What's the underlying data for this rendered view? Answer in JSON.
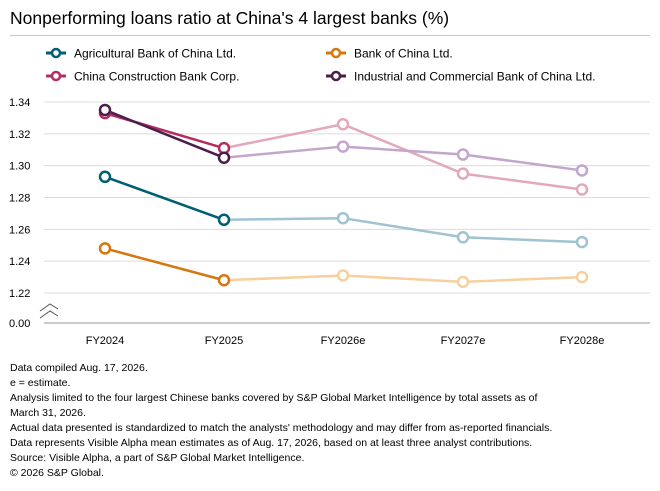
{
  "title": "Nonperforming loans ratio at China's 4 largest banks (%)",
  "notes": [
    "Data compiled Aug. 17, 2026.",
    "e = estimate.",
    "Analysis limited to the four largest Chinese banks covered by S&P Global Market Intelligence by total assets as of",
    "March 31, 2026.",
    " Actual data presented is standardized to match the analysts' methodology and may differ from as-reported financials.",
    "Data represents Visible Alpha mean estimates as of Aug. 17, 2026, based on at least three analyst contributions.",
    "Source: Visible Alpha, a part of S&P Global Market Intelligence.",
    "© 2026 S&P Global."
  ],
  "chart_data": {
    "type": "line",
    "title": "Nonperforming loans ratio at China's 4 largest banks (%)",
    "categories": [
      "FY2024",
      "FY2025",
      "FY2026e",
      "FY2027e",
      "FY2028e"
    ],
    "actual_categories": [
      "FY2024",
      "FY2025"
    ],
    "ylim": [
      1.22,
      1.34
    ],
    "y_ticks": [
      "1.34",
      "1.32",
      "1.30",
      "1.28",
      "1.26",
      "1.24",
      "1.22",
      "0.00"
    ],
    "axis_break": true,
    "grid": true,
    "legend_placement": "top",
    "series": [
      {
        "name": "Agricultural Bank of China Ltd.",
        "color": "#005f73",
        "estimate_color": "#9fc3d0",
        "values": [
          1.293,
          1.266,
          1.267,
          1.255,
          1.252
        ]
      },
      {
        "name": "Bank of China Ltd.",
        "color": "#d5770e",
        "estimate_color": "#f6d09e",
        "values": [
          1.248,
          1.228,
          1.231,
          1.227,
          1.23
        ]
      },
      {
        "name": "China Construction Bank Corp.",
        "color": "#b32e5f",
        "estimate_color": "#e2a8bc",
        "values": [
          1.333,
          1.311,
          1.326,
          1.295,
          1.285
        ]
      },
      {
        "name": "Industrial and Commercial Bank of China Ltd.",
        "color": "#4a1d4d",
        "estimate_color": "#c3a5cd",
        "values": [
          1.335,
          1.305,
          1.312,
          1.307,
          1.297
        ]
      }
    ]
  }
}
